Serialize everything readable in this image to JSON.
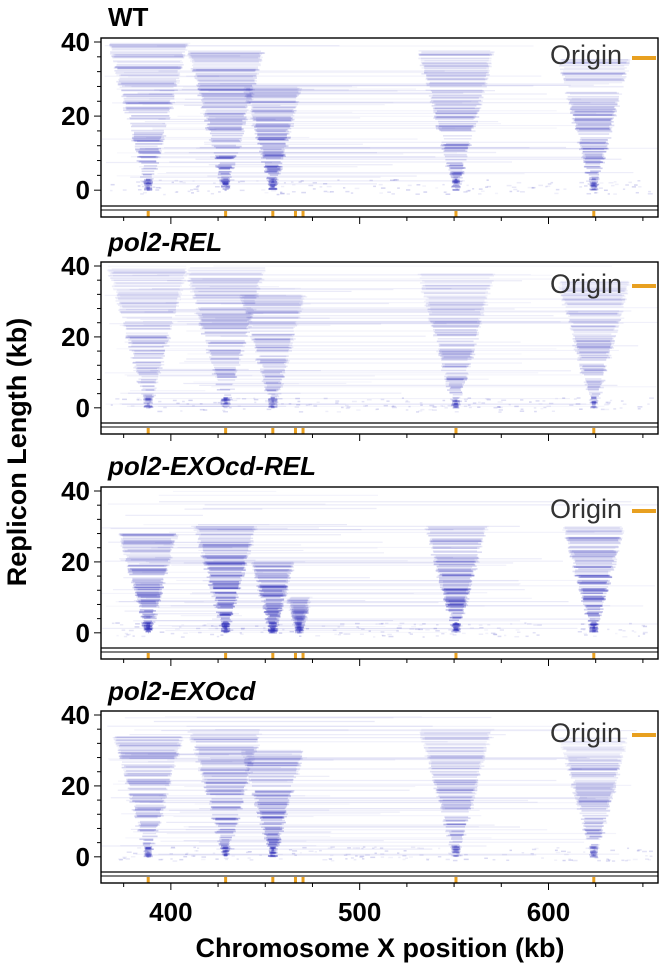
{
  "chart_data": {
    "type": "heatmap",
    "description_free": true,
    "xlabel": "Chromosome X position (kb)",
    "ylabel": "Replicon Length (kb)",
    "xlim": [
      363,
      658
    ],
    "ylim": [
      -4,
      40
    ],
    "x_ticks": [
      400,
      500,
      600
    ],
    "y_ticks": [
      0,
      20,
      40
    ],
    "legend": {
      "label": "Origin",
      "color": "#e8a020",
      "placement": "top-right"
    },
    "colors": {
      "density": "#2a2ab8",
      "origin": "#e8a020",
      "frame": "#000000"
    },
    "panels": [
      {
        "title": "WT",
        "italic": false,
        "origins": [
          388,
          429,
          454,
          466,
          470,
          551,
          624
        ],
        "replicons": [
          {
            "origin": 388,
            "max_len": 40,
            "intensity": 0.75
          },
          {
            "origin": 429,
            "max_len": 38,
            "intensity": 0.85
          },
          {
            "origin": 454,
            "max_len": 28,
            "intensity": 0.85
          },
          {
            "origin": 551,
            "max_len": 38,
            "intensity": 0.75
          },
          {
            "origin": 624,
            "max_len": 36,
            "intensity": 0.75
          }
        ]
      },
      {
        "title": "pol2-REL",
        "italic": true,
        "origins": [
          388,
          429,
          454,
          466,
          470,
          551,
          624
        ],
        "replicons": [
          {
            "origin": 388,
            "max_len": 40,
            "intensity": 0.55
          },
          {
            "origin": 429,
            "max_len": 40,
            "intensity": 0.6
          },
          {
            "origin": 454,
            "max_len": 32,
            "intensity": 0.55
          },
          {
            "origin": 551,
            "max_len": 38,
            "intensity": 0.6
          },
          {
            "origin": 624,
            "max_len": 36,
            "intensity": 0.6
          }
        ]
      },
      {
        "title": "pol2-EXOcd-REL",
        "italic": true,
        "origins": [
          388,
          429,
          454,
          466,
          470,
          551,
          624
        ],
        "replicons": [
          {
            "origin": 388,
            "max_len": 28,
            "intensity": 0.95
          },
          {
            "origin": 429,
            "max_len": 30,
            "intensity": 1.0
          },
          {
            "origin": 454,
            "max_len": 20,
            "intensity": 0.9
          },
          {
            "origin": 468,
            "max_len": 10,
            "intensity": 0.6
          },
          {
            "origin": 551,
            "max_len": 30,
            "intensity": 0.9
          },
          {
            "origin": 624,
            "max_len": 30,
            "intensity": 0.9
          }
        ]
      },
      {
        "title": "pol2-EXOcd",
        "italic": true,
        "origins": [
          388,
          429,
          454,
          466,
          470,
          551,
          624
        ],
        "replicons": [
          {
            "origin": 388,
            "max_len": 34,
            "intensity": 0.7
          },
          {
            "origin": 429,
            "max_len": 36,
            "intensity": 0.75
          },
          {
            "origin": 454,
            "max_len": 30,
            "intensity": 0.85
          },
          {
            "origin": 551,
            "max_len": 36,
            "intensity": 0.6
          },
          {
            "origin": 624,
            "max_len": 34,
            "intensity": 0.6
          }
        ]
      }
    ]
  }
}
